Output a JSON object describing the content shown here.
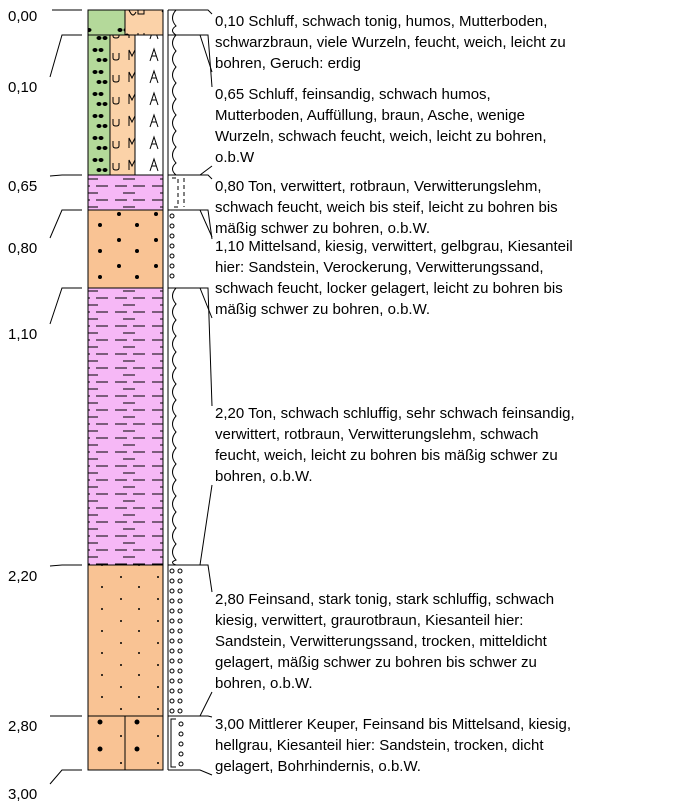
{
  "depths": [
    "0,00",
    "0,10",
    "0,65",
    "0,80",
    "1,10",
    "2,20",
    "2,80",
    "3,00"
  ],
  "layers": [
    {
      "lines": [
        "0,10  Schluff, schwach tonig, humos, Mutterboden,",
        "schwarzbraun, viele Wurzeln, feucht, weich, leicht zu",
        "bohren, Geruch: erdig"
      ]
    },
    {
      "lines": [
        "0,65  Schluff, feinsandig, schwach humos,",
        "Mutterboden, Auffüllung, braun, Asche, wenige",
        "Wurzeln, schwach feucht, weich, leicht zu bohren,",
        "o.b.W"
      ]
    },
    {
      "lines": [
        "0,80  Ton, verwittert, rotbraun, Verwitterungslehm,",
        "schwach feucht, weich bis steif, leicht zu bohren bis",
        "mäßig schwer zu bohren, o.b.W."
      ]
    },
    {
      "lines": [
        "1,10  Mittelsand, kiesig, verwittert, gelbgrau, Kiesanteil",
        "hier: Sandstein, Verockerung, Verwitterungssand,",
        "schwach feucht, locker gelagert, leicht zu bohren bis",
        "mäßig schwer zu bohren, o.b.W."
      ]
    },
    {
      "lines": [
        "2,20  Ton, schwach schluffig, sehr schwach feinsandig,",
        "verwittert, rotbraun, Verwitterungslehm, schwach",
        "feucht, weich, leicht zu bohren bis mäßig schwer zu",
        "bohren, o.b.W."
      ]
    },
    {
      "lines": [
        "2,80  Feinsand, stark tonig, stark schluffig, schwach",
        "kiesig, verwittert, graurotbraun, Kiesanteil hier:",
        "Sandstein, Verwitterungssand, trocken, mitteldicht",
        "gelagert, mäßig schwer zu bohren bis schwer zu",
        "bohren, o.b.W."
      ]
    },
    {
      "lines": [
        "3,00  Mittlerer Keuper, Feinsand bis Mittelsand, kiesig,",
        "hellgrau, Kiesanteil hier: Sandstein, trocken, dicht",
        "gelagert, Bohrhindernis, o.b.W."
      ]
    }
  ]
}
